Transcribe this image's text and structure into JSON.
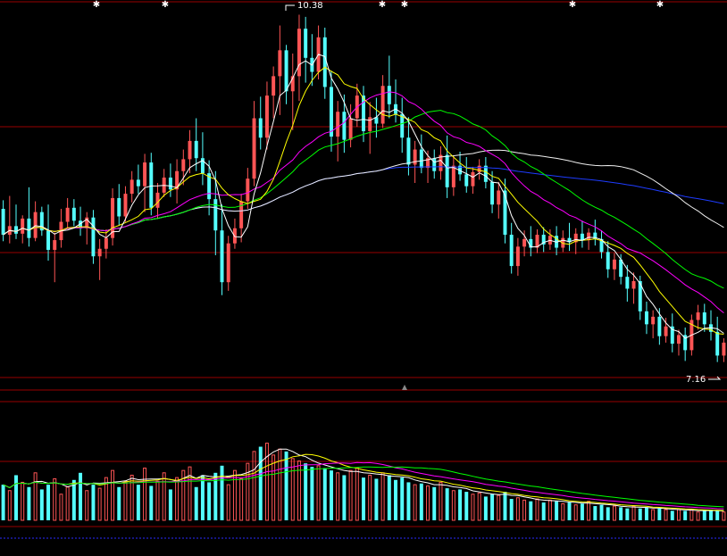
{
  "chart_data": {
    "type": "candlestick",
    "title": "",
    "price_axis": {
      "min": 7.0,
      "max": 10.45
    },
    "volume_axis": {
      "min": 0,
      "max": 100
    },
    "annotations": {
      "high_label": "10.38",
      "low_label": "7.16"
    },
    "colors": {
      "up": "#ff5555",
      "down": "#54ffff",
      "ma5": "#ffffff",
      "ma10": "#ffff00",
      "ma20": "#ff00ff",
      "ma30": "#00ff00",
      "ma60": "#f0f0f0",
      "ma120": "#1e3cff",
      "grid": "#990000",
      "blue_line": "#2a2aff"
    },
    "ohlc": [
      [
        8.58,
        8.66,
        8.28,
        8.34
      ],
      [
        8.34,
        8.7,
        8.26,
        8.42
      ],
      [
        8.42,
        8.62,
        8.3,
        8.35
      ],
      [
        8.35,
        8.52,
        8.26,
        8.49
      ],
      [
        8.49,
        8.78,
        8.23,
        8.31
      ],
      [
        8.31,
        8.65,
        8.28,
        8.55
      ],
      [
        8.55,
        8.6,
        8.33,
        8.38
      ],
      [
        8.38,
        8.62,
        8.1,
        8.2
      ],
      [
        8.2,
        8.36,
        7.9,
        8.29
      ],
      [
        8.29,
        8.58,
        8.22,
        8.46
      ],
      [
        8.46,
        8.68,
        8.4,
        8.59
      ],
      [
        8.59,
        8.67,
        8.42,
        8.47
      ],
      [
        8.47,
        8.6,
        8.33,
        8.4
      ],
      [
        8.4,
        8.55,
        8.25,
        8.5
      ],
      [
        8.5,
        8.57,
        8.07,
        8.14
      ],
      [
        8.14,
        8.3,
        7.92,
        8.21
      ],
      [
        8.21,
        8.39,
        8.12,
        8.31
      ],
      [
        8.31,
        8.77,
        8.24,
        8.68
      ],
      [
        8.68,
        8.81,
        8.43,
        8.51
      ],
      [
        8.51,
        8.79,
        8.46,
        8.72
      ],
      [
        8.72,
        8.93,
        8.64,
        8.85
      ],
      [
        8.85,
        8.99,
        8.72,
        8.79
      ],
      [
        8.79,
        9.09,
        8.55,
        9.01
      ],
      [
        9.01,
        9.1,
        8.52,
        8.59
      ],
      [
        8.59,
        8.82,
        8.49,
        8.73
      ],
      [
        8.73,
        8.95,
        8.69,
        8.87
      ],
      [
        8.87,
        9.0,
        8.69,
        8.76
      ],
      [
        8.76,
        9.04,
        8.63,
        8.93
      ],
      [
        8.93,
        9.13,
        8.8,
        9.04
      ],
      [
        9.04,
        9.31,
        8.91,
        9.21
      ],
      [
        9.21,
        9.42,
        8.93,
        9.05
      ],
      [
        9.05,
        9.29,
        8.8,
        8.91
      ],
      [
        8.91,
        9.03,
        8.52,
        8.67
      ],
      [
        8.67,
        8.93,
        8.15,
        8.38
      ],
      [
        8.38,
        8.62,
        7.78,
        7.9
      ],
      [
        7.9,
        8.33,
        7.82,
        8.26
      ],
      [
        8.26,
        8.49,
        8.21,
        8.4
      ],
      [
        8.4,
        8.72,
        8.27,
        8.65
      ],
      [
        8.65,
        8.96,
        8.58,
        8.86
      ],
      [
        8.86,
        9.58,
        8.79,
        9.42
      ],
      [
        9.42,
        9.62,
        9.13,
        9.24
      ],
      [
        9.24,
        9.76,
        9.13,
        9.63
      ],
      [
        9.63,
        9.9,
        9.42,
        9.81
      ],
      [
        9.81,
        10.28,
        9.45,
        10.05
      ],
      [
        10.05,
        10.1,
        9.55,
        9.67
      ],
      [
        9.67,
        10.02,
        9.31,
        9.81
      ],
      [
        9.81,
        10.38,
        9.58,
        10.25
      ],
      [
        10.25,
        10.36,
        9.75,
        9.98
      ],
      [
        9.98,
        10.2,
        9.72,
        9.85
      ],
      [
        9.85,
        10.28,
        9.78,
        10.17
      ],
      [
        10.17,
        10.26,
        9.6,
        9.71
      ],
      [
        9.71,
        9.86,
        9.11,
        9.25
      ],
      [
        9.25,
        9.58,
        9.02,
        9.48
      ],
      [
        9.48,
        9.64,
        9.1,
        9.22
      ],
      [
        9.22,
        9.55,
        9.15,
        9.42
      ],
      [
        9.42,
        9.74,
        9.34,
        9.63
      ],
      [
        9.63,
        9.72,
        9.2,
        9.3
      ],
      [
        9.3,
        9.57,
        9.09,
        9.43
      ],
      [
        9.43,
        9.61,
        9.24,
        9.37
      ],
      [
        9.37,
        9.82,
        9.33,
        9.72
      ],
      [
        9.72,
        10.0,
        9.42,
        9.55
      ],
      [
        9.55,
        9.78,
        9.38,
        9.46
      ],
      [
        9.46,
        9.61,
        9.1,
        9.24
      ],
      [
        9.24,
        9.43,
        8.89,
        8.99
      ],
      [
        8.99,
        9.21,
        8.82,
        9.13
      ],
      [
        9.13,
        9.27,
        8.91,
        8.96
      ],
      [
        8.96,
        9.12,
        8.82,
        9.05
      ],
      [
        9.05,
        9.13,
        8.86,
        8.93
      ],
      [
        8.93,
        9.16,
        8.85,
        9.08
      ],
      [
        9.08,
        9.26,
        8.68,
        8.78
      ],
      [
        8.78,
        9.07,
        8.7,
        8.98
      ],
      [
        8.98,
        9.11,
        8.84,
        8.9
      ],
      [
        8.9,
        9.06,
        8.73,
        8.79
      ],
      [
        8.79,
        8.97,
        8.72,
        8.92
      ],
      [
        8.92,
        9.04,
        8.85,
        8.98
      ],
      [
        8.98,
        9.06,
        8.77,
        8.83
      ],
      [
        8.83,
        8.93,
        8.54,
        8.62
      ],
      [
        8.62,
        8.83,
        8.49,
        8.75
      ],
      [
        8.75,
        8.86,
        8.26,
        8.34
      ],
      [
        8.34,
        8.45,
        7.98,
        8.05
      ],
      [
        8.05,
        8.31,
        7.96,
        8.23
      ],
      [
        8.23,
        8.38,
        8.14,
        8.3
      ],
      [
        8.3,
        8.42,
        8.14,
        8.22
      ],
      [
        8.22,
        8.39,
        8.17,
        8.34
      ],
      [
        8.34,
        8.41,
        8.18,
        8.25
      ],
      [
        8.25,
        8.39,
        8.2,
        8.33
      ],
      [
        8.33,
        8.42,
        8.15,
        8.22
      ],
      [
        8.22,
        8.38,
        8.18,
        8.31
      ],
      [
        8.31,
        8.45,
        8.19,
        8.27
      ],
      [
        8.27,
        8.4,
        8.16,
        8.35
      ],
      [
        8.35,
        8.47,
        8.22,
        8.29
      ],
      [
        8.29,
        8.4,
        8.2,
        8.36
      ],
      [
        8.36,
        8.48,
        8.24,
        8.3
      ],
      [
        8.3,
        8.38,
        8.12,
        8.18
      ],
      [
        8.18,
        8.28,
        7.94,
        8.02
      ],
      [
        8.02,
        8.17,
        7.92,
        8.11
      ],
      [
        8.11,
        8.16,
        7.88,
        7.95
      ],
      [
        7.95,
        8.06,
        7.72,
        7.84
      ],
      [
        7.84,
        7.99,
        7.7,
        7.91
      ],
      [
        7.91,
        7.96,
        7.55,
        7.63
      ],
      [
        7.63,
        7.72,
        7.42,
        7.51
      ],
      [
        7.51,
        7.64,
        7.38,
        7.58
      ],
      [
        7.58,
        7.66,
        7.32,
        7.4
      ],
      [
        7.4,
        7.57,
        7.34,
        7.49
      ],
      [
        7.49,
        7.61,
        7.25,
        7.33
      ],
      [
        7.33,
        7.46,
        7.22,
        7.41
      ],
      [
        7.41,
        7.48,
        7.17,
        7.27
      ],
      [
        7.27,
        7.6,
        7.22,
        7.55
      ],
      [
        7.55,
        7.69,
        7.46,
        7.62
      ],
      [
        7.62,
        7.7,
        7.44,
        7.51
      ],
      [
        7.51,
        7.64,
        7.36,
        7.44
      ],
      [
        7.44,
        7.58,
        7.16,
        7.22
      ],
      [
        7.22,
        7.38,
        7.16,
        7.34
      ]
    ],
    "volume": [
      30,
      25,
      38,
      32,
      28,
      40,
      26,
      30,
      35,
      22,
      28,
      34,
      40,
      25,
      30,
      27,
      36,
      42,
      28,
      33,
      38,
      30,
      44,
      29,
      33,
      40,
      26,
      36,
      42,
      45,
      28,
      38,
      32,
      40,
      46,
      30,
      42,
      35,
      48,
      58,
      62,
      65,
      55,
      60,
      58,
      52,
      50,
      48,
      45,
      46,
      44,
      42,
      40,
      38,
      42,
      44,
      36,
      38,
      35,
      40,
      38,
      34,
      36,
      32,
      30,
      31,
      29,
      28,
      32,
      27,
      25,
      26,
      24,
      22,
      23,
      20,
      22,
      21,
      24,
      18,
      19,
      17,
      16,
      18,
      15,
      17,
      16,
      14,
      15,
      13,
      14,
      16,
      12,
      13,
      11,
      12,
      11,
      10,
      12,
      10,
      11,
      9,
      10,
      9,
      8,
      9,
      8,
      9,
      7,
      8,
      9,
      8,
      7
    ]
  }
}
